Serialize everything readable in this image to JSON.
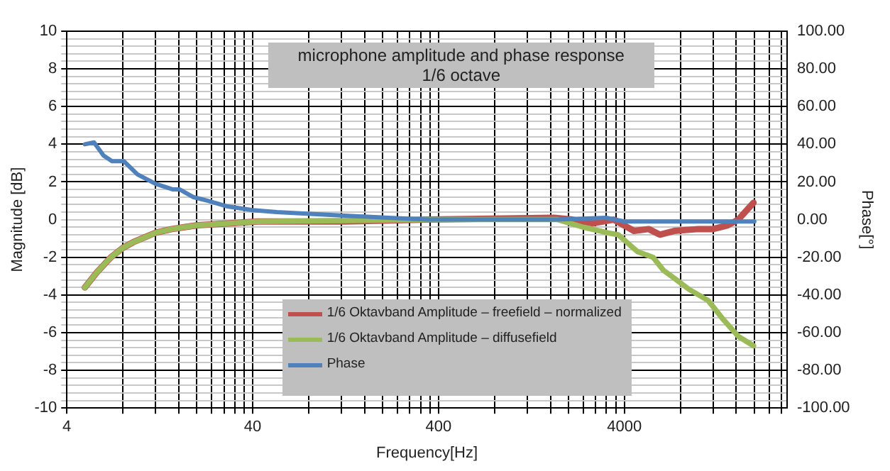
{
  "chart_data": {
    "type": "line",
    "title": "microphone amplitude and phase response",
    "subtitle": "1/6 octave",
    "xlabel": "Frequency[Hz]",
    "ylabel": "Magnitude [dB]",
    "y2label": "Phase[°]",
    "log": "x",
    "grid": true,
    "legend": "bottom",
    "marker": "none",
    "line_style": "solid",
    "xlim": [
      4,
      30000
    ],
    "xticks": [
      4,
      {
        "value": 8,
        "label": null
      },
      {
        "value": 12,
        "label": null
      },
      {
        "value": 16,
        "label": null
      },
      {
        "value": 20,
        "label": null
      },
      {
        "value": 24,
        "label": null
      },
      {
        "value": 28,
        "label": null
      },
      {
        "value": 32,
        "label": null
      },
      {
        "value": 36,
        "label": null
      },
      40,
      {
        "value": 80,
        "label": null
      },
      {
        "value": 120,
        "label": null
      },
      {
        "value": 160,
        "label": null
      },
      {
        "value": 200,
        "label": null
      },
      {
        "value": 240,
        "label": null
      },
      {
        "value": 280,
        "label": null
      },
      {
        "value": 320,
        "label": null
      },
      {
        "value": 360,
        "label": null
      },
      400,
      {
        "value": 800,
        "label": null
      },
      {
        "value": 1200,
        "label": null
      },
      {
        "value": 1600,
        "label": null
      },
      {
        "value": 2000,
        "label": null
      },
      {
        "value": 2400,
        "label": null
      },
      {
        "value": 2800,
        "label": null
      },
      {
        "value": 3200,
        "label": null
      },
      {
        "value": 3600,
        "label": null
      },
      4000,
      {
        "value": 8000,
        "label": null
      },
      {
        "value": 12000,
        "label": null
      },
      {
        "value": 16000,
        "label": null
      },
      {
        "value": 20000,
        "label": null
      },
      {
        "value": 24000,
        "label": null
      },
      {
        "value": 28000,
        "label": null
      }
    ],
    "ylim": [
      -10,
      10
    ],
    "yticks": [
      -10,
      {
        "value": -9.6,
        "label": null
      },
      {
        "value": -9.2,
        "label": null
      },
      {
        "value": -8.8,
        "label": null
      },
      {
        "value": -8.4,
        "label": null
      },
      -8,
      {
        "value": -7.6,
        "label": null
      },
      {
        "value": -7.2,
        "label": null
      },
      {
        "value": -6.8,
        "label": null
      },
      {
        "value": -6.4,
        "label": null
      },
      -6,
      {
        "value": -5.6,
        "label": null
      },
      {
        "value": -5.2,
        "label": null
      },
      {
        "value": -4.8,
        "label": null
      },
      {
        "value": -4.4,
        "label": null
      },
      -4,
      {
        "value": -3.6,
        "label": null
      },
      {
        "value": -3.2,
        "label": null
      },
      {
        "value": -2.8,
        "label": null
      },
      {
        "value": -2.4,
        "label": null
      },
      -2,
      {
        "value": -1.6,
        "label": null
      },
      {
        "value": -1.2,
        "label": null
      },
      {
        "value": -0.8,
        "label": null
      },
      {
        "value": -0.4,
        "label": null
      },
      0,
      {
        "value": 0.4,
        "label": null
      },
      {
        "value": 0.8,
        "label": null
      },
      {
        "value": 1.2,
        "label": null
      },
      {
        "value": 1.6,
        "label": null
      },
      2,
      {
        "value": 2.4,
        "label": null
      },
      {
        "value": 2.8,
        "label": null
      },
      {
        "value": 3.2,
        "label": null
      },
      {
        "value": 3.6,
        "label": null
      },
      4,
      {
        "value": 4.4,
        "label": null
      },
      {
        "value": 4.8,
        "label": null
      },
      {
        "value": 5.2,
        "label": null
      },
      {
        "value": 5.6,
        "label": null
      },
      6,
      {
        "value": 6.4,
        "label": null
      },
      {
        "value": 6.8,
        "label": null
      },
      {
        "value": 7.2,
        "label": null
      },
      {
        "value": 7.6,
        "label": null
      },
      8,
      {
        "value": 8.4,
        "label": null
      },
      {
        "value": 8.8,
        "label": null
      },
      {
        "value": 9.2,
        "label": null
      },
      {
        "value": 9.6,
        "label": null
      },
      10
    ],
    "y2lim": [
      -100,
      100
    ],
    "y2ticks": [
      {
        "value": -100,
        "label": "-100.00"
      },
      {
        "value": -80,
        "label": "-80.00"
      },
      {
        "value": -60,
        "label": "-60.00"
      },
      {
        "value": -40,
        "label": "-40.00"
      },
      {
        "value": -20,
        "label": "-20.00"
      },
      {
        "value": 0,
        "label": "0.00"
      },
      {
        "value": 20,
        "label": "20.00"
      },
      {
        "value": 40,
        "label": "40.00"
      },
      {
        "value": 60,
        "label": "60.00"
      },
      {
        "value": 80,
        "label": "80.00"
      },
      {
        "value": 100,
        "label": "100.00"
      }
    ],
    "series": [
      {
        "name": "1/6 Oktavband Amplitude – freefield – normalized",
        "color": "#c0504d",
        "x": [
          5,
          5.8,
          6.9,
          8,
          9.1,
          12,
          14.7,
          20.2,
          29.3,
          42.5,
          124,
          350,
          1670,
          2100,
          2700,
          3500,
          4500,
          5400,
          6200,
          7400,
          10000,
          12000,
          14400,
          16400,
          19800
        ],
        "values": [
          -3.6,
          -2.8,
          -2.0,
          -1.5,
          -1.2,
          -0.7,
          -0.5,
          -0.3,
          -0.2,
          -0.1,
          -0.1,
          0,
          0.1,
          0,
          -0.2,
          0,
          -0.6,
          -0.5,
          -0.8,
          -0.6,
          -0.5,
          -0.5,
          -0.3,
          0,
          0.9
        ]
      },
      {
        "name": "1/6 Oktavband Amplitude – diffusefield",
        "color": "#9bbb59",
        "x": [
          5,
          5.8,
          6.9,
          8,
          9.1,
          12,
          14.7,
          20.2,
          29.3,
          42.5,
          350,
          1750,
          2400,
          3250,
          3700,
          4700,
          5700,
          6500,
          7400,
          8900,
          11300,
          13600,
          16400,
          19800
        ],
        "values": [
          -3.6,
          -2.8,
          -2.0,
          -1.5,
          -1.2,
          -0.7,
          -0.5,
          -0.3,
          -0.2,
          -0.1,
          0,
          0,
          -0.4,
          -0.7,
          -0.8,
          -1.7,
          -2.0,
          -2.7,
          -3.1,
          -3.7,
          -4.3,
          -5.3,
          -6.2,
          -6.7
        ]
      },
      {
        "name": "Phase",
        "color": "#4f81bd",
        "axis": "y2",
        "x": [
          5,
          5.6,
          6.3,
          7,
          8.1,
          9.6,
          12,
          14.9,
          16.2,
          19.1,
          23,
          29.3,
          40,
          54,
          85,
          130,
          215,
          350,
          690,
          1750,
          3190,
          4000,
          6500,
          11300,
          16400,
          20000
        ],
        "values": [
          40,
          41,
          34,
          31,
          31,
          24,
          19,
          16,
          16,
          12,
          10,
          7,
          5,
          4,
          3,
          2,
          1,
          0,
          0,
          0,
          1,
          -1,
          -1,
          -1,
          -1,
          -1
        ]
      }
    ]
  }
}
